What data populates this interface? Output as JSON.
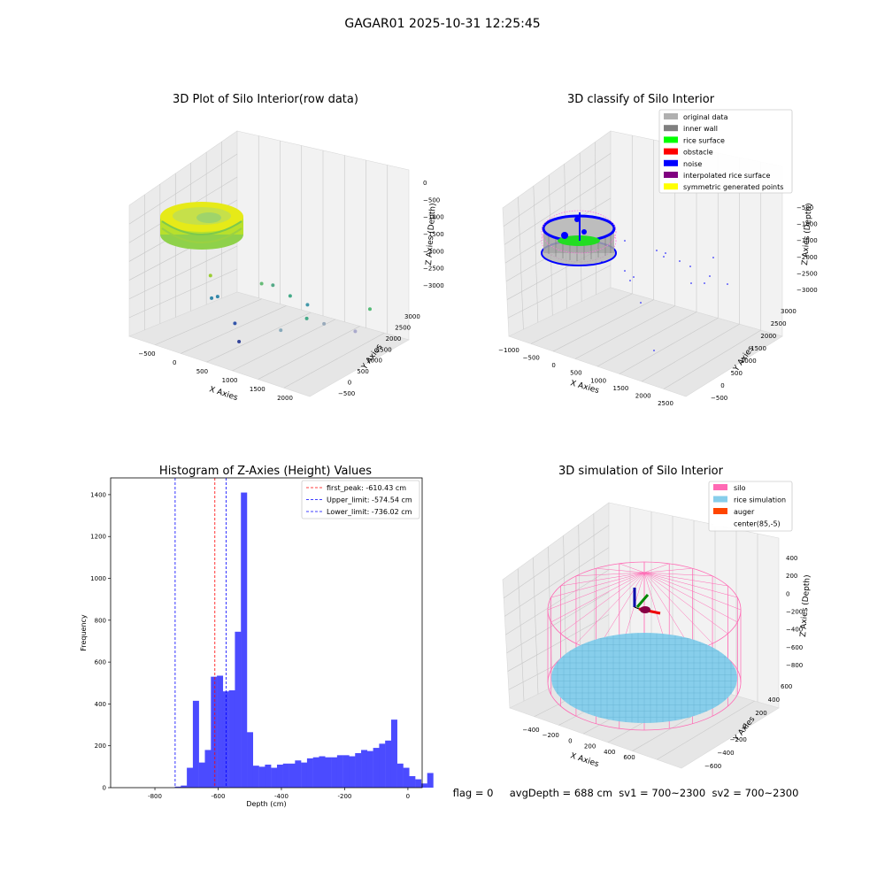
{
  "suptitle": "GAGAR01 2025-10-31 12:25:45",
  "chart_data": [
    {
      "type": "scatter",
      "title": "3D Plot of Silo Interior(row data)",
      "xlabel": "X Axies",
      "ylabel": "Y Axies",
      "zlabel": "Z Axies (Depth)",
      "xticks": [
        "−500",
        "0",
        "500",
        "1000",
        "1500",
        "2000"
      ],
      "yticks": [
        "−500",
        "0",
        "500",
        "1000",
        "1500",
        "2000",
        "2500",
        "3000"
      ],
      "zticks": [
        "0",
        "−500",
        "−1000",
        "−1500",
        "−2000",
        "−2500",
        "−3000"
      ],
      "outliers": [
        {
          "label": "point",
          "x": 300,
          "y": 100,
          "z": -1500,
          "color": "#9acd32"
        },
        {
          "label": "point",
          "x": 800,
          "y": 900,
          "z": -1700,
          "color": "#66bb77"
        },
        {
          "label": "point",
          "x": 900,
          "y": 1100,
          "z": -1750,
          "color": "#55aa88"
        },
        {
          "label": "point",
          "x": 1100,
          "y": 1300,
          "z": -2000,
          "color": "#44aa88"
        },
        {
          "label": "point",
          "x": 1300,
          "y": 1500,
          "z": -2200,
          "color": "#4499aa"
        },
        {
          "label": "point",
          "x": 1900,
          "y": 2500,
          "z": -2300,
          "color": "#55bb77"
        },
        {
          "label": "point",
          "x": 200,
          "y": 600,
          "z": -2300,
          "color": "#3388aa"
        },
        {
          "label": "point",
          "x": 100,
          "y": 600,
          "z": -2400,
          "color": "#3388aa"
        },
        {
          "label": "point",
          "x": 1200,
          "y": 1700,
          "z": -2700,
          "color": "#44aa88"
        },
        {
          "label": "point",
          "x": 1400,
          "y": 1900,
          "z": -2800,
          "color": "#99aabb"
        },
        {
          "label": "point",
          "x": 1700,
          "y": 2400,
          "z": -3000,
          "color": "#aaaacc"
        },
        {
          "label": "point",
          "x": 400,
          "y": 800,
          "z": -3000,
          "color": "#3355aa"
        },
        {
          "label": "point",
          "x": 900,
          "y": 1400,
          "z": -3100,
          "color": "#88aabb"
        },
        {
          "label": "point",
          "x": 600,
          "y": 500,
          "z": -3300,
          "color": "#334499"
        }
      ]
    },
    {
      "type": "scatter",
      "title": "3D classify of Silo Interior",
      "xlabel": "X Axies",
      "ylabel": "Y Axies",
      "zlabel": "Z Axies (Depth)",
      "xticks": [
        "−1000",
        "−500",
        "0",
        "500",
        "1000",
        "1500",
        "2000",
        "2500"
      ],
      "yticks": [
        "−500",
        "0",
        "500",
        "1000",
        "1500",
        "2000",
        "2500",
        "3000"
      ],
      "zticks": [
        "−500",
        "−1000",
        "−1500",
        "−2000",
        "−2500",
        "−3000"
      ],
      "legend": [
        {
          "label": "original data",
          "color": "#b0b0b0"
        },
        {
          "label": "inner wall",
          "color": "#808080"
        },
        {
          "label": "rice surface",
          "color": "#00ff00"
        },
        {
          "label": "obstacle",
          "color": "#ff0000"
        },
        {
          "label": "noise",
          "color": "#0000ff"
        },
        {
          "label": "interpolated rice surface",
          "color": "#800080"
        },
        {
          "label": "symmetric generated points",
          "color": "#ffff00"
        }
      ],
      "legend_loc": "upper right"
    },
    {
      "type": "bar",
      "title": "Histogram of Z-Axies (Height) Values",
      "xlabel": "Depth (cm)",
      "ylabel": "Frequency",
      "xlim": [
        -940,
        45
      ],
      "ylim": [
        0,
        1480
      ],
      "xticks": [
        -800,
        -600,
        -400,
        -200,
        0
      ],
      "yticks": [
        0,
        200,
        400,
        600,
        800,
        1000,
        1200,
        1400
      ],
      "bin_width": 19,
      "bin_start": -908,
      "values": [
        0,
        0,
        0,
        0,
        0,
        0,
        0,
        0,
        0,
        5,
        10,
        95,
        415,
        120,
        180,
        530,
        535,
        460,
        465,
        745,
        1410,
        265,
        105,
        100,
        110,
        95,
        110,
        115,
        115,
        130,
        120,
        140,
        145,
        150,
        145,
        145,
        155,
        155,
        150,
        165,
        180,
        175,
        190,
        210,
        225,
        325,
        115,
        95,
        55,
        40,
        20,
        70
      ],
      "bar_color": "#4b4bff",
      "vlines": [
        {
          "label": "first_peak: -610.43 cm",
          "x": -610.43,
          "color": "#ff0000"
        },
        {
          "label": "Upper_limit: -574.54 cm",
          "x": -574.54,
          "color": "#0000ff"
        },
        {
          "label": "Lower_limit: -736.02 cm",
          "x": -736.02,
          "color": "#0000ff"
        }
      ],
      "legend_loc": "upper right"
    },
    {
      "type": "scatter",
      "title": "3D simulation of Silo Interior",
      "xlabel": "X Axies",
      "ylabel": "Y Axies",
      "zlabel": "Z Axies (Depth)",
      "xticks": [
        "−400",
        "−200",
        "0",
        "200",
        "400",
        "600"
      ],
      "yticks": [
        "600",
        "400",
        "200",
        "0",
        "−200",
        "−400",
        "−600"
      ],
      "zticks": [
        "400",
        "200",
        "0",
        "−200",
        "−400",
        "−600",
        "−800"
      ],
      "legend": [
        {
          "label": "silo",
          "color": "#ff69b4"
        },
        {
          "label": "rice simulation",
          "color": "#87ceeb"
        },
        {
          "label": "auger",
          "color": "#ff4500"
        },
        {
          "label": "center(85,-5)",
          "color": "#ffffff"
        }
      ],
      "legend_loc": "upper right"
    }
  ],
  "status_text": "flag = 0     avgDepth = 688 cm  sv1 = 700~2300  sv2 = 700~2300",
  "colors": {
    "pane_left": "#ebebeb",
    "pane_right": "#f2f2f2",
    "pane_floor": "#e6e6e6",
    "grid": "#c8c8c8",
    "silo": "#ff69b4",
    "rice": "#87ceeb",
    "rice_grid": "#5aa9c8",
    "hist_bar": "#4b4bff"
  }
}
